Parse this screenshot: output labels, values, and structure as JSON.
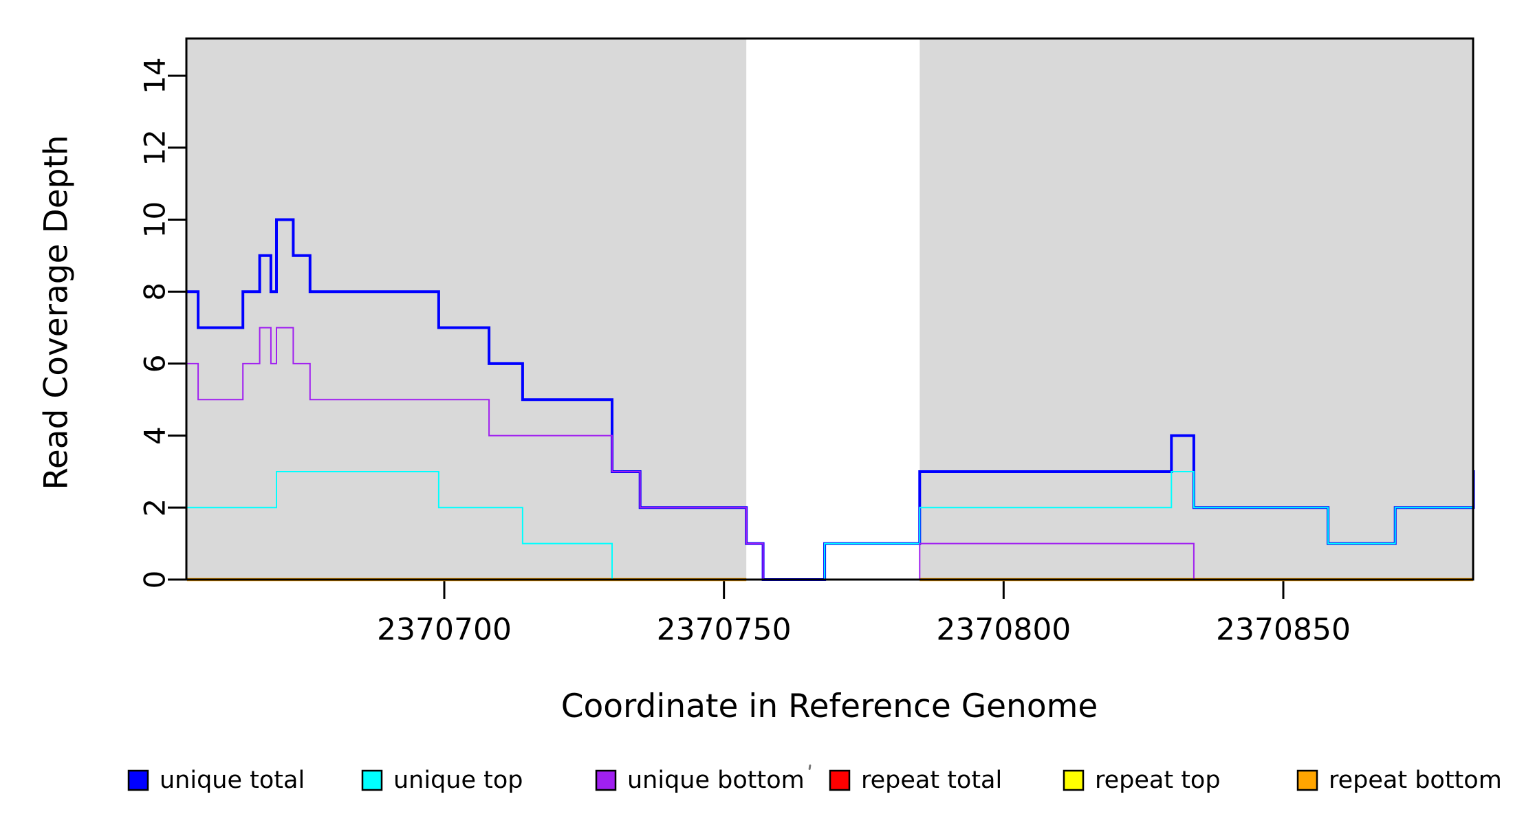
{
  "chart_data": {
    "type": "line",
    "subtype": "step-coverage",
    "title": "",
    "xlabel": "Coordinate in Reference Genome",
    "ylabel": "Read Coverage Depth",
    "xlim": [
      2370654,
      2370884
    ],
    "ylim": [
      0,
      15
    ],
    "x_ticks": [
      2370700,
      2370750,
      2370800,
      2370850
    ],
    "y_ticks": [
      0,
      2,
      4,
      6,
      8,
      10,
      12,
      14
    ],
    "grid": false,
    "legend_position": "bottom",
    "shade_color": "#D9D9D9",
    "background_color": "#FFFFFF",
    "axis_color": "#000000",
    "shaded_regions": [
      {
        "x0": 2370654,
        "x1": 2370754
      },
      {
        "x0": 2370785,
        "x1": 2370884
      }
    ],
    "series": [
      {
        "name": "repeat-total",
        "label": "repeat total",
        "color": "#FF0000",
        "width": 2.2,
        "segments": [
          {
            "end": 2370754,
            "points": [
              [
                2370654,
                0
              ]
            ]
          },
          {
            "end": 2370884,
            "points": [
              [
                2370785,
                0
              ]
            ]
          }
        ]
      },
      {
        "name": "repeat-top",
        "label": "repeat top",
        "color": "#FFFF00",
        "width": 2.2,
        "segments": [
          {
            "end": 2370754,
            "points": [
              [
                2370654,
                0
              ]
            ]
          },
          {
            "end": 2370884,
            "points": [
              [
                2370785,
                0
              ]
            ]
          }
        ]
      },
      {
        "name": "repeat-bottom",
        "label": "repeat bottom",
        "color": "#FFA500",
        "width": 4.5,
        "segments": [
          {
            "end": 2370754,
            "points": [
              [
                2370654,
                0
              ]
            ]
          },
          {
            "end": 2370884,
            "points": [
              [
                2370785,
                0
              ]
            ]
          }
        ]
      },
      {
        "name": "unique-total",
        "label": "unique total",
        "color": "#0000FF",
        "width": 4,
        "segments": [
          {
            "end": 2370884,
            "points": [
              [
                2370654,
                8
              ],
              [
                2370656,
                7
              ],
              [
                2370664,
                8
              ],
              [
                2370667,
                9
              ],
              [
                2370669,
                8
              ],
              [
                2370670,
                10
              ],
              [
                2370673,
                9
              ],
              [
                2370676,
                8
              ],
              [
                2370699,
                7
              ],
              [
                2370708,
                6
              ],
              [
                2370714,
                5
              ],
              [
                2370730,
                3
              ],
              [
                2370735,
                2
              ],
              [
                2370754,
                1
              ],
              [
                2370757,
                0
              ],
              [
                2370768,
                1
              ],
              [
                2370785,
                3
              ],
              [
                2370830,
                4
              ],
              [
                2370834,
                2
              ],
              [
                2370858,
                1
              ],
              [
                2370870,
                2
              ],
              [
                2370884,
                3
              ]
            ]
          }
        ]
      },
      {
        "name": "unique-top",
        "label": "unique top",
        "color": "#00FFFF",
        "width": 2,
        "segments": [
          {
            "end": 2370884,
            "points": [
              [
                2370654,
                2
              ],
              [
                2370670,
                3
              ],
              [
                2370699,
                2
              ],
              [
                2370714,
                1
              ],
              [
                2370730,
                0
              ],
              [
                2370768,
                1
              ],
              [
                2370785,
                2
              ],
              [
                2370830,
                3
              ],
              [
                2370834,
                2
              ],
              [
                2370858,
                1
              ],
              [
                2370870,
                2
              ]
            ]
          }
        ]
      },
      {
        "name": "unique-bottom",
        "label": "unique bottom",
        "color": "#A020F0",
        "width": 2,
        "segments": [
          {
            "end": 2370884,
            "points": [
              [
                2370654,
                6
              ],
              [
                2370656,
                5
              ],
              [
                2370664,
                6
              ],
              [
                2370667,
                7
              ],
              [
                2370669,
                6
              ],
              [
                2370670,
                7
              ],
              [
                2370673,
                6
              ],
              [
                2370676,
                5
              ],
              [
                2370708,
                4
              ],
              [
                2370730,
                3
              ],
              [
                2370735,
                2
              ],
              [
                2370754,
                1
              ],
              [
                2370757,
                0
              ],
              [
                2370785,
                1
              ],
              [
                2370834,
                0
              ],
              [
                2370884,
                1
              ]
            ]
          }
        ]
      }
    ],
    "legend": [
      {
        "label": "unique total",
        "color": "#0000FF"
      },
      {
        "label": "unique top",
        "color": "#00FFFF"
      },
      {
        "label": "unique bottom",
        "color": "#A020F0"
      },
      {
        "label": "repeat total",
        "color": "#FF0000"
      },
      {
        "label": "repeat top",
        "color": "#FFFF00"
      },
      {
        "label": "repeat bottom",
        "color": "#FFA500"
      }
    ]
  },
  "layout_text": {
    "x_tick_labels": [
      "2370700",
      "2370750",
      "2370800",
      "2370850"
    ],
    "y_tick_labels": [
      "0",
      "2",
      "4",
      "6",
      "8",
      "10",
      "12",
      "14"
    ]
  }
}
